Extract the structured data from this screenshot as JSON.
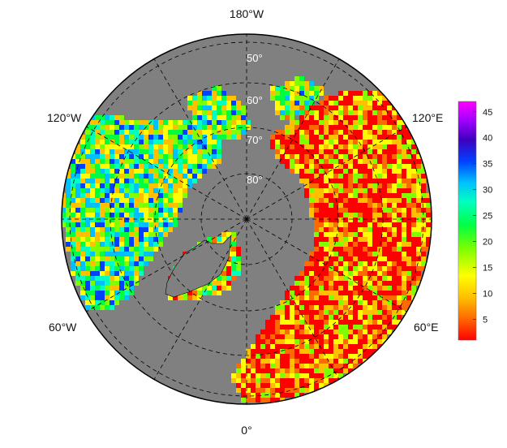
{
  "map": {
    "projection": "north polar stereographic",
    "ocean_color": "#808080",
    "coastline_color": "#000000",
    "graticule_style": "dashed",
    "lon_labels": {
      "top": "180°W",
      "bottom": "0°",
      "upper_left": "120°W",
      "upper_right": "120°E",
      "lower_left": "60°W",
      "lower_right": "60°E"
    },
    "lat_labels": [
      "50°",
      "60°",
      "70°",
      "80°"
    ]
  },
  "colorbar": {
    "ticks": [
      "5",
      "10",
      "15",
      "20",
      "25",
      "30",
      "35",
      "40",
      "45"
    ],
    "min": 1,
    "max": 47,
    "colors": [
      "#ff0000",
      "#ff6a00",
      "#ffc000",
      "#ffff00",
      "#80ff00",
      "#00ff40",
      "#00ffc0",
      "#00c0ff",
      "#0040ff",
      "#4000c0",
      "#a000ff",
      "#ff00ff"
    ]
  }
}
